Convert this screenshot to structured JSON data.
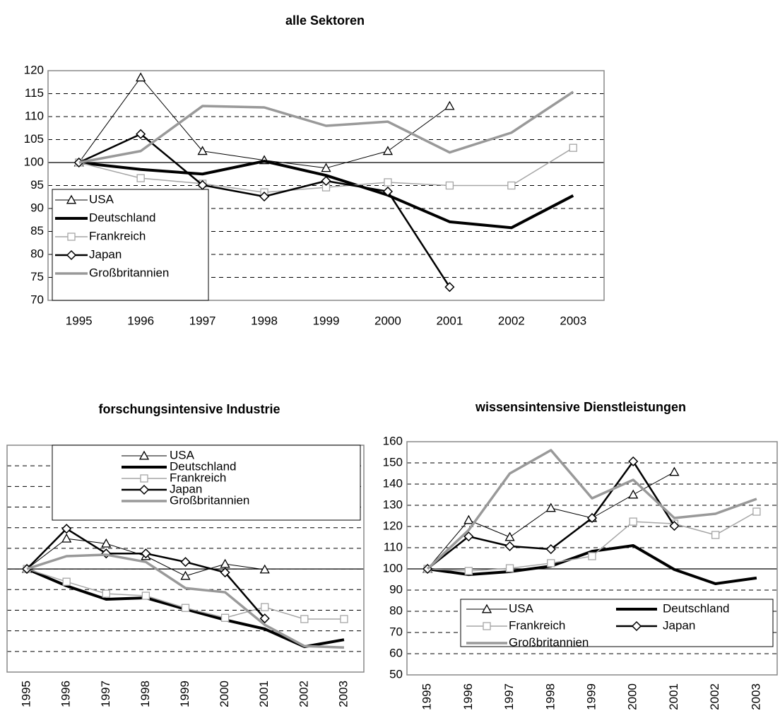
{
  "chart_data": [
    {
      "type": "line",
      "title": "alle Sektoren",
      "categories": [
        "1995",
        "1996",
        "1997",
        "1998",
        "1999",
        "2000",
        "2001",
        "2002",
        "2003"
      ],
      "ylim": [
        70,
        120
      ],
      "yticks": [
        70,
        75,
        80,
        85,
        90,
        95,
        100,
        105,
        110,
        115,
        120
      ],
      "hline": 100,
      "grid": true,
      "legend": "lower left",
      "series": [
        {
          "name": "USA",
          "color": "#000000",
          "line_width": 1,
          "marker": "triangle",
          "values": [
            100,
            118.5,
            102.5,
            100.5,
            98.8,
            102.5,
            112.3,
            null,
            null
          ]
        },
        {
          "name": "Deutschland",
          "color": "#000000",
          "line_width": 4,
          "marker": "none",
          "values": [
            100,
            98.5,
            97.5,
            100.3,
            97.2,
            92.9,
            87.1,
            85.8,
            92.8
          ]
        },
        {
          "name": "Frankreich",
          "color": "#a6a6a6",
          "line_width": 1.5,
          "marker": "square",
          "values": [
            100,
            96.6,
            95.4,
            93.5,
            94.6,
            95.7,
            95,
            95,
            103.2
          ]
        },
        {
          "name": "Japan",
          "color": "#000000",
          "line_width": 2.5,
          "marker": "diamond",
          "values": [
            100,
            106.2,
            95.1,
            92.6,
            96,
            93.7,
            72.9,
            null,
            null
          ]
        },
        {
          "name": "Großbritannien",
          "color": "#999999",
          "line_width": 3.5,
          "marker": "none",
          "values": [
            100,
            102.5,
            112.3,
            112,
            108,
            108.9,
            102.2,
            106.5,
            115.4
          ]
        }
      ]
    },
    {
      "type": "line",
      "title": "forschungsintensive Industrie",
      "categories": [
        "1995",
        "1996",
        "1997",
        "1998",
        "1999",
        "2000",
        "2001",
        "2002",
        "2003"
      ],
      "ylim": [
        50,
        160
      ],
      "yticks": [
        60,
        70,
        80,
        90,
        100,
        110,
        120,
        130,
        140,
        150
      ],
      "hline": 100,
      "grid": true,
      "legend": "upper center",
      "series": [
        {
          "name": "USA",
          "color": "#000000",
          "line_width": 1,
          "marker": "triangle",
          "values": [
            100,
            114.7,
            112.3,
            106.2,
            96.6,
            102.4,
            99.7,
            null,
            null
          ]
        },
        {
          "name": "Deutschland",
          "color": "#000000",
          "line_width": 4,
          "marker": "none",
          "values": [
            100,
            91.8,
            85.3,
            86,
            80.5,
            75.3,
            70.9,
            62.3,
            65.7
          ]
        },
        {
          "name": "Frankreich",
          "color": "#a6a6a6",
          "line_width": 1.5,
          "marker": "square",
          "values": [
            100,
            93.8,
            88,
            87,
            81.1,
            76.3,
            81.5,
            75.7,
            75.7
          ]
        },
        {
          "name": "Japan",
          "color": "#000000",
          "line_width": 2.5,
          "marker": "diamond",
          "values": [
            100,
            119.5,
            107.5,
            107.5,
            103.4,
            98.3,
            76,
            null,
            null
          ]
        },
        {
          "name": "Großbritannien",
          "color": "#999999",
          "line_width": 3.5,
          "marker": "none",
          "values": [
            100,
            106.2,
            106.9,
            103.4,
            90.7,
            88.7,
            72.9,
            62.6,
            61.9
          ]
        }
      ]
    },
    {
      "type": "line",
      "title": "wissensintensive Dienstleistungen",
      "categories": [
        "1995",
        "1996",
        "1997",
        "1998",
        "1999",
        "2000",
        "2001",
        "2002",
        "2003"
      ],
      "ylim": [
        50,
        160
      ],
      "yticks": [
        50,
        60,
        70,
        80,
        90,
        100,
        110,
        120,
        130,
        140,
        150,
        160
      ],
      "hline": 100,
      "grid": true,
      "legend": "lower right",
      "series": [
        {
          "name": "USA",
          "color": "#000000",
          "line_width": 1,
          "marker": "triangle",
          "values": [
            100,
            123,
            115,
            128.7,
            124,
            135,
            145.7,
            null,
            null
          ]
        },
        {
          "name": "Deutschland",
          "color": "#000000",
          "line_width": 4,
          "marker": "none",
          "values": [
            100,
            97.3,
            98.7,
            101.3,
            108.3,
            111,
            99.7,
            93,
            95.7
          ]
        },
        {
          "name": "Frankreich",
          "color": "#a6a6a6",
          "line_width": 1.5,
          "marker": "square",
          "values": [
            100,
            99,
            100.3,
            102.7,
            106,
            122.3,
            121.3,
            116,
            127
          ]
        },
        {
          "name": "Japan",
          "color": "#000000",
          "line_width": 2.5,
          "marker": "diamond",
          "values": [
            100,
            115.3,
            110.7,
            109.3,
            124,
            150.7,
            120.3,
            null,
            null
          ]
        },
        {
          "name": "Großbritannien",
          "color": "#999999",
          "line_width": 3.5,
          "marker": "none",
          "values": [
            100,
            118.3,
            145,
            156,
            133.3,
            142,
            124,
            126,
            133
          ]
        }
      ]
    }
  ]
}
